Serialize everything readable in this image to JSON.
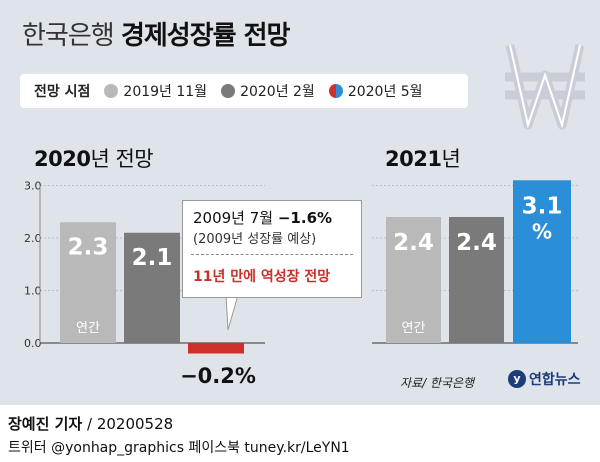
{
  "title": {
    "prefix": "한국은행",
    "main": "경제성장률 전망"
  },
  "legend": {
    "heading": "전망 시점",
    "items": [
      {
        "label": "2019년 11월",
        "color": "#b9b9b9"
      },
      {
        "label": "2020년 2월",
        "color": "#7a7a7a"
      },
      {
        "label": "2020년 5월",
        "color_left": "#d0302c",
        "color_right": "#2a8fd6"
      }
    ]
  },
  "colors": {
    "light_gray": "#b9b9b9",
    "dark_gray": "#7a7a7a",
    "red": "#d0302c",
    "blue": "#2a8fd6"
  },
  "chart_data": [
    {
      "type": "bar",
      "title": "2020년 전망",
      "title_year": "2020",
      "title_rest": "년 전망",
      "categories": [
        "2019년 11월",
        "2020년 2월",
        "2020년 5월"
      ],
      "values": [
        2.3,
        2.1,
        -0.2
      ],
      "value_labels": [
        "2.3",
        "2.1",
        "−0.2%"
      ],
      "bar_notes": [
        "연간",
        "",
        ""
      ],
      "yticks": [
        "3.0",
        "2.0",
        "1.0",
        "0.0"
      ],
      "ylim": [
        0,
        3.0
      ]
    },
    {
      "type": "bar",
      "title": "2021년",
      "title_year": "2021",
      "title_rest": "년",
      "categories": [
        "2019년 11월",
        "2020년 2월",
        "2020년 5월"
      ],
      "values": [
        2.4,
        2.4,
        3.1
      ],
      "value_labels": [
        "2.4",
        "2.4",
        "3.1"
      ],
      "value_unit": "%",
      "bar_notes": [
        "연간",
        "",
        ""
      ],
      "ylim": [
        0,
        3.0
      ]
    }
  ],
  "callout": {
    "line1_plain": "2009년 7월 ",
    "line1_bold": "−1.6%",
    "line2": "(2009년 성장률 예상)",
    "line3": "11년 만에 역성장 전망"
  },
  "source": "자료/ 한국은행",
  "brand": {
    "icon_text": "y",
    "name": "연합뉴스"
  },
  "footer": {
    "author": "장예진 기자",
    "date": " / 20200528",
    "social": "트위터 @yonhap_graphics  페이스북 tuney.kr/LeYN1"
  }
}
